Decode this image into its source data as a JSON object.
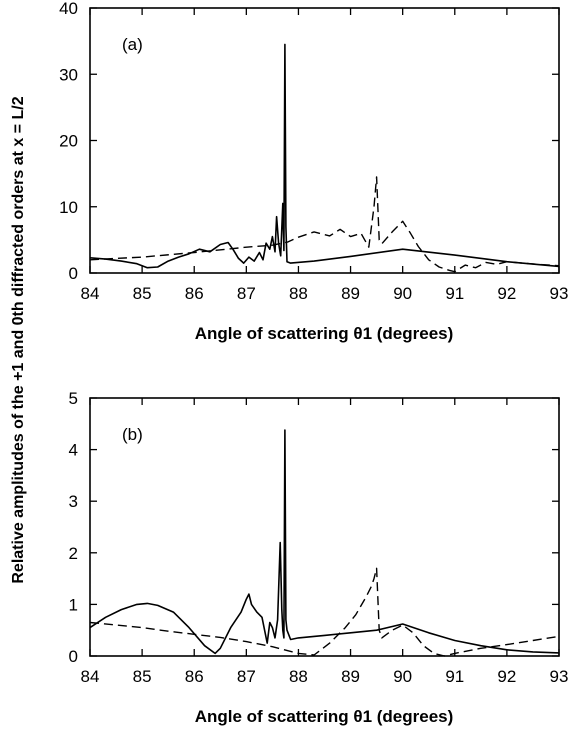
{
  "figure": {
    "shared_ylabel": "Relative amplitudes of the +1 and 0th diffracted orders at x = L/2"
  },
  "chart_data": [
    {
      "type": "line",
      "panel_label": "(a)",
      "xlabel": "Angle of scattering θ1 (degrees)",
      "xlim": [
        84,
        93
      ],
      "ylim": [
        0,
        40
      ],
      "xticks": [
        84,
        85,
        86,
        87,
        88,
        89,
        90,
        91,
        92,
        93
      ],
      "yticks": [
        0,
        10,
        20,
        30,
        40
      ],
      "grid": false,
      "series": [
        {
          "style": "solid",
          "x": [
            84,
            84.3,
            84.6,
            84.9,
            85.1,
            85.3,
            85.5,
            85.7,
            85.9,
            86.1,
            86.3,
            86.5,
            86.65,
            86.75,
            86.85,
            86.95,
            87.05,
            87.15,
            87.25,
            87.32,
            87.38,
            87.45,
            87.5,
            87.55,
            87.58,
            87.62,
            87.66,
            87.7,
            87.72,
            87.74,
            87.76,
            87.78,
            87.85,
            88.3,
            89,
            90,
            91,
            92,
            93
          ],
          "y": [
            2.3,
            2.1,
            1.8,
            1.4,
            0.8,
            0.9,
            1.8,
            2.4,
            2.9,
            3.6,
            3.2,
            4.3,
            4.6,
            3.5,
            2.2,
            1.5,
            2.4,
            1.8,
            3.1,
            2.0,
            4.5,
            3.6,
            5.5,
            3.2,
            8.5,
            4.5,
            2.6,
            10.5,
            3.4,
            34.5,
            7.0,
            1.7,
            1.5,
            1.8,
            2.5,
            3.6,
            2.7,
            1.7,
            1.0
          ]
        },
        {
          "style": "dashed",
          "x": [
            84,
            85,
            86,
            87,
            87.5,
            87.8,
            88,
            88.3,
            88.6,
            88.8,
            89,
            89.2,
            89.35,
            89.45,
            89.5,
            89.55,
            89.6,
            89.8,
            90,
            90.15,
            90.3,
            90.5,
            90.7,
            90.9,
            91,
            91.2,
            91.4,
            91.6,
            91.8,
            92,
            92.3,
            92.6,
            93
          ],
          "y": [
            2.0,
            2.4,
            3.1,
            3.9,
            4.2,
            4.7,
            5.4,
            6.2,
            5.6,
            6.6,
            5.5,
            6.0,
            3.9,
            10.0,
            14.5,
            5.0,
            4.4,
            6.2,
            7.8,
            6.0,
            4.0,
            2.0,
            0.9,
            0.4,
            0.2,
            1.2,
            0.8,
            1.6,
            1.3,
            1.7,
            1.5,
            1.3,
            1.1
          ]
        }
      ]
    },
    {
      "type": "line",
      "panel_label": "(b)",
      "xlabel": "Angle of scattering θ1 (degrees)",
      "xlim": [
        84,
        93
      ],
      "ylim": [
        0,
        5
      ],
      "xticks": [
        84,
        85,
        86,
        87,
        88,
        89,
        90,
        91,
        92,
        93
      ],
      "yticks": [
        0,
        1,
        2,
        3,
        4,
        5
      ],
      "grid": false,
      "series": [
        {
          "style": "solid",
          "x": [
            84,
            84.3,
            84.6,
            84.9,
            85.1,
            85.3,
            85.6,
            85.9,
            86.2,
            86.4,
            86.5,
            86.7,
            86.9,
            87,
            87.05,
            87.1,
            87.2,
            87.3,
            87.4,
            87.45,
            87.5,
            87.55,
            87.6,
            87.65,
            87.68,
            87.7,
            87.72,
            87.74,
            87.76,
            87.78,
            87.85,
            88,
            88.5,
            89,
            89.5,
            90,
            90.5,
            91,
            91.5,
            92,
            92.5,
            93
          ],
          "y": [
            0.55,
            0.75,
            0.9,
            1.0,
            1.02,
            0.98,
            0.85,
            0.55,
            0.2,
            0.05,
            0.15,
            0.55,
            0.85,
            1.1,
            1.2,
            1.0,
            0.85,
            0.75,
            0.25,
            0.65,
            0.55,
            0.35,
            0.7,
            2.2,
            0.9,
            0.5,
            0.35,
            4.38,
            0.7,
            0.5,
            0.32,
            0.35,
            0.4,
            0.45,
            0.5,
            0.62,
            0.45,
            0.3,
            0.2,
            0.12,
            0.08,
            0.06
          ]
        },
        {
          "style": "dashed",
          "x": [
            84,
            84.5,
            85,
            85.5,
            86,
            86.5,
            87,
            87.5,
            88,
            88.3,
            88.6,
            88.9,
            89.1,
            89.3,
            89.4,
            89.45,
            89.5,
            89.55,
            89.6,
            89.8,
            90,
            90.2,
            90.4,
            90.6,
            90.8,
            91,
            91.5,
            92,
            92.5,
            93
          ],
          "y": [
            0.65,
            0.6,
            0.55,
            0.48,
            0.42,
            0.36,
            0.28,
            0.18,
            0.05,
            0.02,
            0.25,
            0.55,
            0.8,
            1.15,
            1.35,
            1.5,
            1.7,
            0.5,
            0.35,
            0.5,
            0.6,
            0.45,
            0.2,
            0.05,
            0.0,
            0.05,
            0.15,
            0.22,
            0.3,
            0.38
          ]
        }
      ]
    }
  ]
}
